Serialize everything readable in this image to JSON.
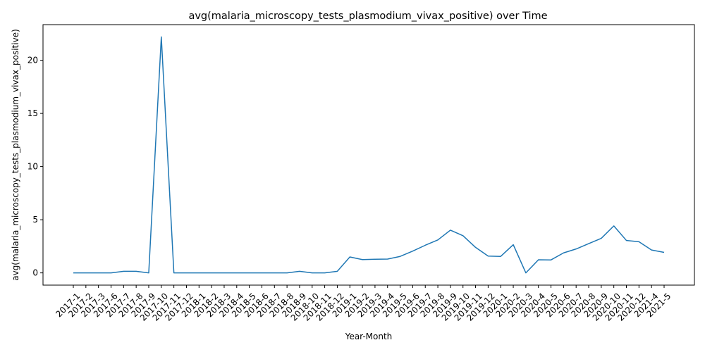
{
  "chart_data": {
    "type": "line",
    "title": "avg(malaria_microscopy_tests_plasmodium_vivax_positive) over Time",
    "xlabel": "Year-Month",
    "ylabel": "avg(malaria_microscopy_tests_plasmodium_vivax_positive)",
    "ylim": [
      -1.15,
      23.35
    ],
    "yticks": [
      0,
      5,
      10,
      15,
      20
    ],
    "grid": false,
    "line_color": "#1f77b4",
    "categories": [
      "2017-1",
      "2017-2",
      "2017-3",
      "2017-6",
      "2017-7",
      "2017-8",
      "2017-9",
      "2017-10",
      "2017-11",
      "2017-12",
      "2018-1",
      "2018-2",
      "2018-3",
      "2018-4",
      "2018-5",
      "2018-6",
      "2018-7",
      "2018-8",
      "2018-9",
      "2018-10",
      "2018-11",
      "2018-12",
      "2019-1",
      "2019-2",
      "2019-3",
      "2019-4",
      "2019-5",
      "2019-6",
      "2019-7",
      "2019-8",
      "2019-9",
      "2019-10",
      "2019-11",
      "2019-12",
      "2020-1",
      "2020-2",
      "2020-3",
      "2020-4",
      "2020-5",
      "2020-6",
      "2020-7",
      "2020-8",
      "2020-9",
      "2020-10",
      "2020-11",
      "2020-12",
      "2021-4",
      "2021-5"
    ],
    "values": [
      0,
      0,
      0,
      0,
      0.15,
      0.15,
      0,
      22.2,
      0,
      0,
      0,
      0,
      0,
      0,
      0,
      0,
      0,
      0,
      0.15,
      0,
      0,
      0.15,
      1.5,
      1.25,
      1.28,
      1.3,
      1.55,
      2.05,
      2.6,
      3.1,
      4.02,
      3.5,
      2.4,
      1.58,
      1.55,
      2.65,
      0,
      1.23,
      1.22,
      1.88,
      2.25,
      2.75,
      3.25,
      4.42,
      3.05,
      2.93,
      2.15,
      1.93
    ]
  }
}
